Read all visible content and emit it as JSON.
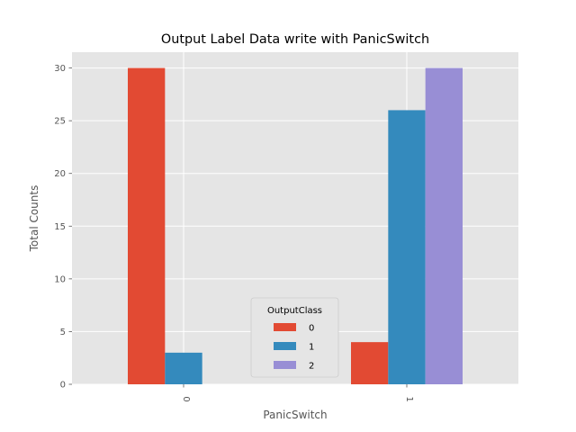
{
  "chart_data": {
    "type": "bar",
    "title": "Output Label Data write with PanicSwitch",
    "xlabel": "PanicSwitch",
    "ylabel": "Total Counts",
    "categories": [
      "0",
      "1"
    ],
    "series": [
      {
        "name": "0",
        "values": [
          30,
          4
        ],
        "color": "#E24A33"
      },
      {
        "name": "1",
        "values": [
          3,
          26
        ],
        "color": "#348ABD"
      },
      {
        "name": "2",
        "values": [
          0,
          30
        ],
        "color": "#988ED5"
      }
    ],
    "ylim": [
      0,
      31.5
    ],
    "yticks": [
      0,
      5,
      10,
      15,
      20,
      25,
      30
    ],
    "grid": true,
    "legend": {
      "title": "OutputClass",
      "placement": "lower-center"
    },
    "colors": {
      "plot_background": "#E5E5E5",
      "grid": "#FFFFFF"
    }
  }
}
